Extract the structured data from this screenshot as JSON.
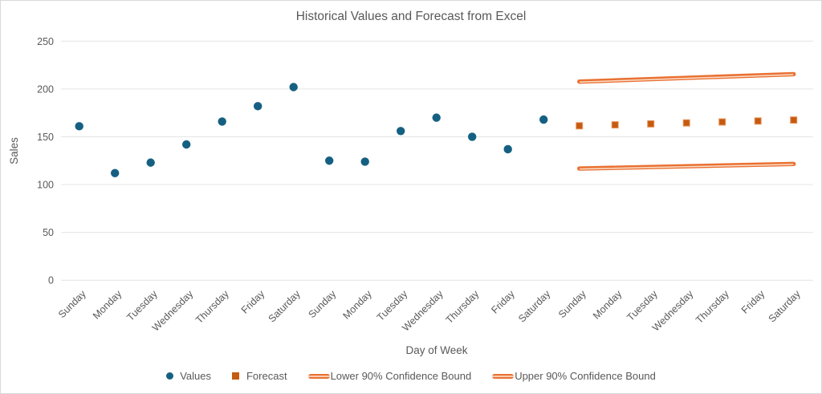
{
  "chart_data": {
    "type": "scatter",
    "title": "Historical Values and Forecast from Excel",
    "xlabel": "Day of Week",
    "ylabel": "Sales",
    "ylim": [
      0,
      250
    ],
    "yticks": [
      0,
      50,
      100,
      150,
      200,
      250
    ],
    "grid": true,
    "legend_position": "bottom",
    "categories": [
      "Sunday",
      "Monday",
      "Tuesday",
      "Wednesday",
      "Thursday",
      "Friday",
      "Saturday",
      "Sunday",
      "Monday",
      "Tuesday",
      "Wednesday",
      "Thursday",
      "Friday",
      "Saturday",
      "Sunday",
      "Monday",
      "Tuesday",
      "Wednesday",
      "Thursday",
      "Friday",
      "Saturday"
    ],
    "series": [
      {
        "name": "Values",
        "marker": "circle",
        "color": "#156082",
        "start_index": 0,
        "values": [
          161,
          112,
          123,
          142,
          166,
          182,
          202,
          125,
          124,
          156,
          170,
          150,
          137,
          168
        ]
      },
      {
        "name": "Forecast",
        "marker": "square",
        "color": "#C55A11",
        "start_index": 14,
        "values": [
          161.5,
          162.5,
          163.5,
          164.5,
          165.5,
          166.5,
          167.5
        ]
      },
      {
        "name": "Lower 90% Confidence Bound",
        "marker": "line",
        "color": "#E97132",
        "start_index": 14,
        "values": [
          116.8,
          117.6,
          118.4,
          119.2,
          120.0,
          120.8,
          121.6
        ]
      },
      {
        "name": "Upper 90% Confidence Bound",
        "marker": "line",
        "color": "#E97132",
        "start_index": 14,
        "values": [
          207.7,
          209.0,
          210.3,
          211.6,
          212.9,
          214.2,
          215.5
        ]
      }
    ]
  },
  "colors": {
    "values_blue": "#156082",
    "forecast_orange": "#C55A11",
    "forecast_marker_stroke": "#E9975F",
    "bound_orange": "#E97132",
    "bound_highlight": "#FBDFCC",
    "gridline": "#E4E4E4",
    "text": "#595959",
    "border": "#D9D9D9"
  }
}
